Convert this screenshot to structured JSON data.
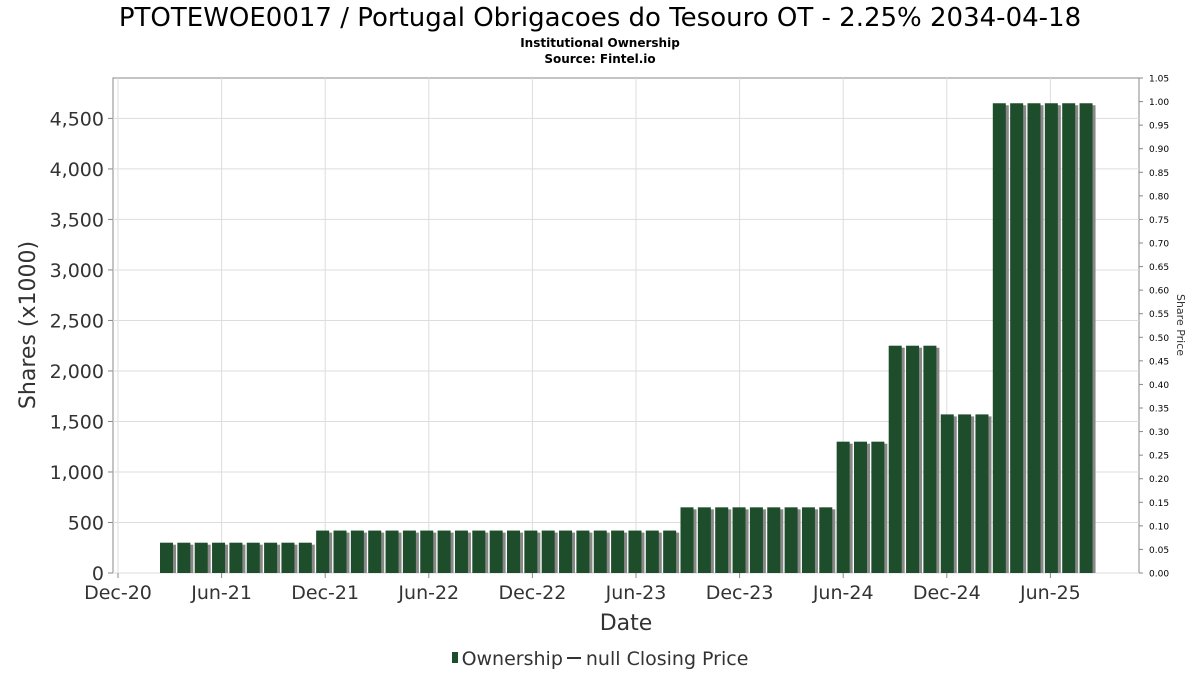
{
  "chart_data": {
    "type": "bar",
    "title": "PTOTEWOE0017 / Portugal Obrigacoes do Tesouro OT - 2.25% 2034-04-18",
    "subtitle": "Institutional Ownership",
    "source": "Source: Fintel.io",
    "xlabel": "Date",
    "ylabel": "Shares (x1000)",
    "y2label": "Share Price",
    "ylim": [
      0,
      4900
    ],
    "y2lim": [
      0,
      1.05
    ],
    "yticks": [
      0,
      500,
      1000,
      1500,
      2000,
      2500,
      3000,
      3500,
      4000,
      4500
    ],
    "yticklabels": [
      "0",
      "500",
      "1,000",
      "1,500",
      "2,000",
      "2,500",
      "3,000",
      "3,500",
      "4,000",
      "4,500"
    ],
    "y2ticks": [
      0.0,
      0.05,
      0.1,
      0.15,
      0.2,
      0.25,
      0.3,
      0.35,
      0.4,
      0.45,
      0.5,
      0.55,
      0.6,
      0.65,
      0.7,
      0.75,
      0.8,
      0.85,
      0.9,
      0.95,
      1.0,
      1.05
    ],
    "y2ticklabels": [
      "0.00",
      "0.05",
      "0.10",
      "0.15",
      "0.20",
      "0.25",
      "0.30",
      "0.35",
      "0.40",
      "0.45",
      "0.50",
      "0.55",
      "0.60",
      "0.65",
      "0.70",
      "0.75",
      "0.80",
      "0.85",
      "0.90",
      "0.95",
      "1.00",
      "1.05"
    ],
    "xticklabels": [
      "Dec-20",
      "Jun-21",
      "Dec-21",
      "Jun-22",
      "Dec-22",
      "Jun-23",
      "Dec-23",
      "Jun-24",
      "Dec-24",
      "Jun-25"
    ],
    "grid": true,
    "legend_position": "bottom-center",
    "series": [
      {
        "name": "Ownership",
        "color": "#1e4d2b",
        "values": [
          300,
          300,
          300,
          300,
          300,
          300,
          300,
          300,
          300,
          420,
          420,
          420,
          420,
          420,
          420,
          420,
          420,
          420,
          420,
          420,
          420,
          420,
          420,
          420,
          420,
          420,
          420,
          420,
          420,
          420,
          650,
          650,
          650,
          650,
          650,
          650,
          650,
          650,
          650,
          1300,
          1300,
          1300,
          2250,
          2250,
          2250,
          1570,
          1570,
          1570,
          4650,
          4650,
          4650,
          4650,
          4650,
          4650
        ]
      }
    ],
    "legend": {
      "ownership_label": "Ownership",
      "price_label": "null Closing Price"
    }
  },
  "colors": {
    "bar": "#1e4d2b",
    "bar_shadow": "#888888",
    "grid": "#dddddd",
    "axis": "#888888"
  }
}
